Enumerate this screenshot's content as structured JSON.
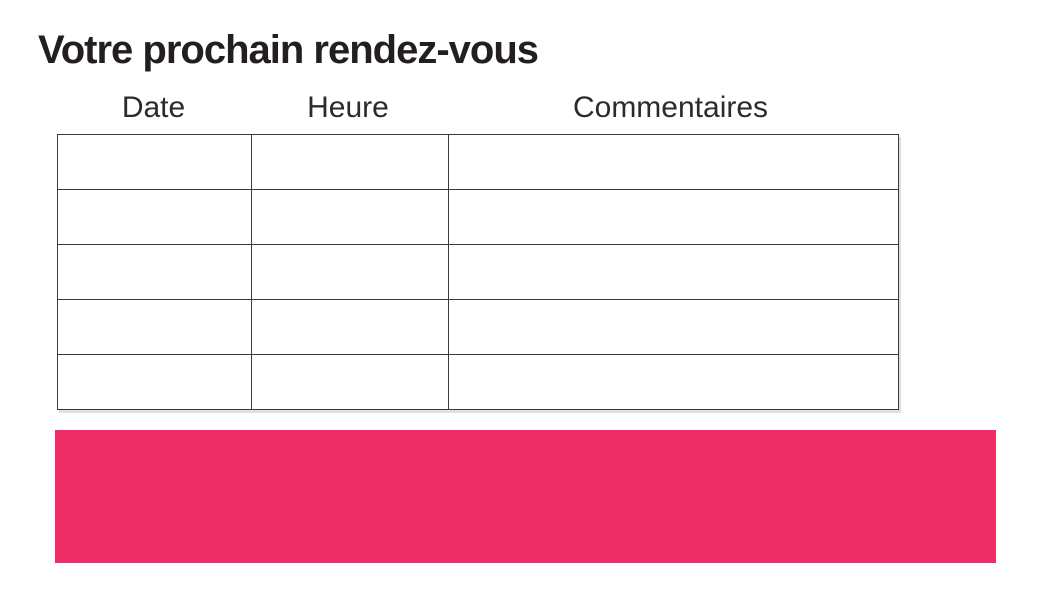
{
  "title": "Votre prochain rendez-vous",
  "table": {
    "columns": [
      {
        "label": "Date"
      },
      {
        "label": "Heure"
      },
      {
        "label": "Commentaires"
      }
    ],
    "rows": [
      [
        "",
        "",
        ""
      ],
      [
        "",
        "",
        ""
      ],
      [
        "",
        "",
        ""
      ],
      [
        "",
        "",
        ""
      ],
      [
        "",
        "",
        ""
      ]
    ]
  },
  "colors": {
    "accent_pink": "#EE2D67",
    "title_text": "#231F20",
    "header_text": "#2B2B2B",
    "table_border": "#3A3A3A",
    "background": "#FFFFFF"
  }
}
